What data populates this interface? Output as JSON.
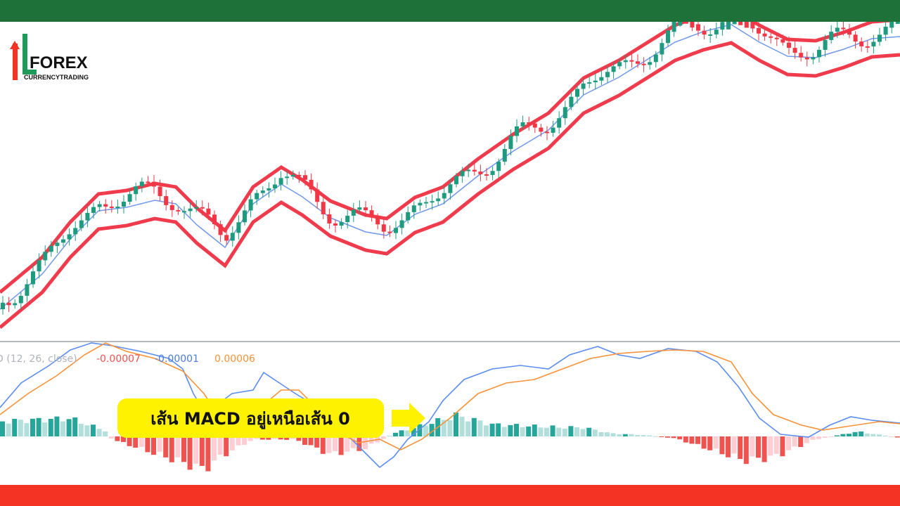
{
  "logo": {
    "name": "FOREX",
    "tagline": "CURRENCYTRADING"
  },
  "indicator": {
    "label": "D (12, 26, close)",
    "histogram": "-0.00007",
    "macd": "-0.00001",
    "signal": "0.00006"
  },
  "annotation": "เส้น MACD อยู่เหนือเส้น 0"
}
